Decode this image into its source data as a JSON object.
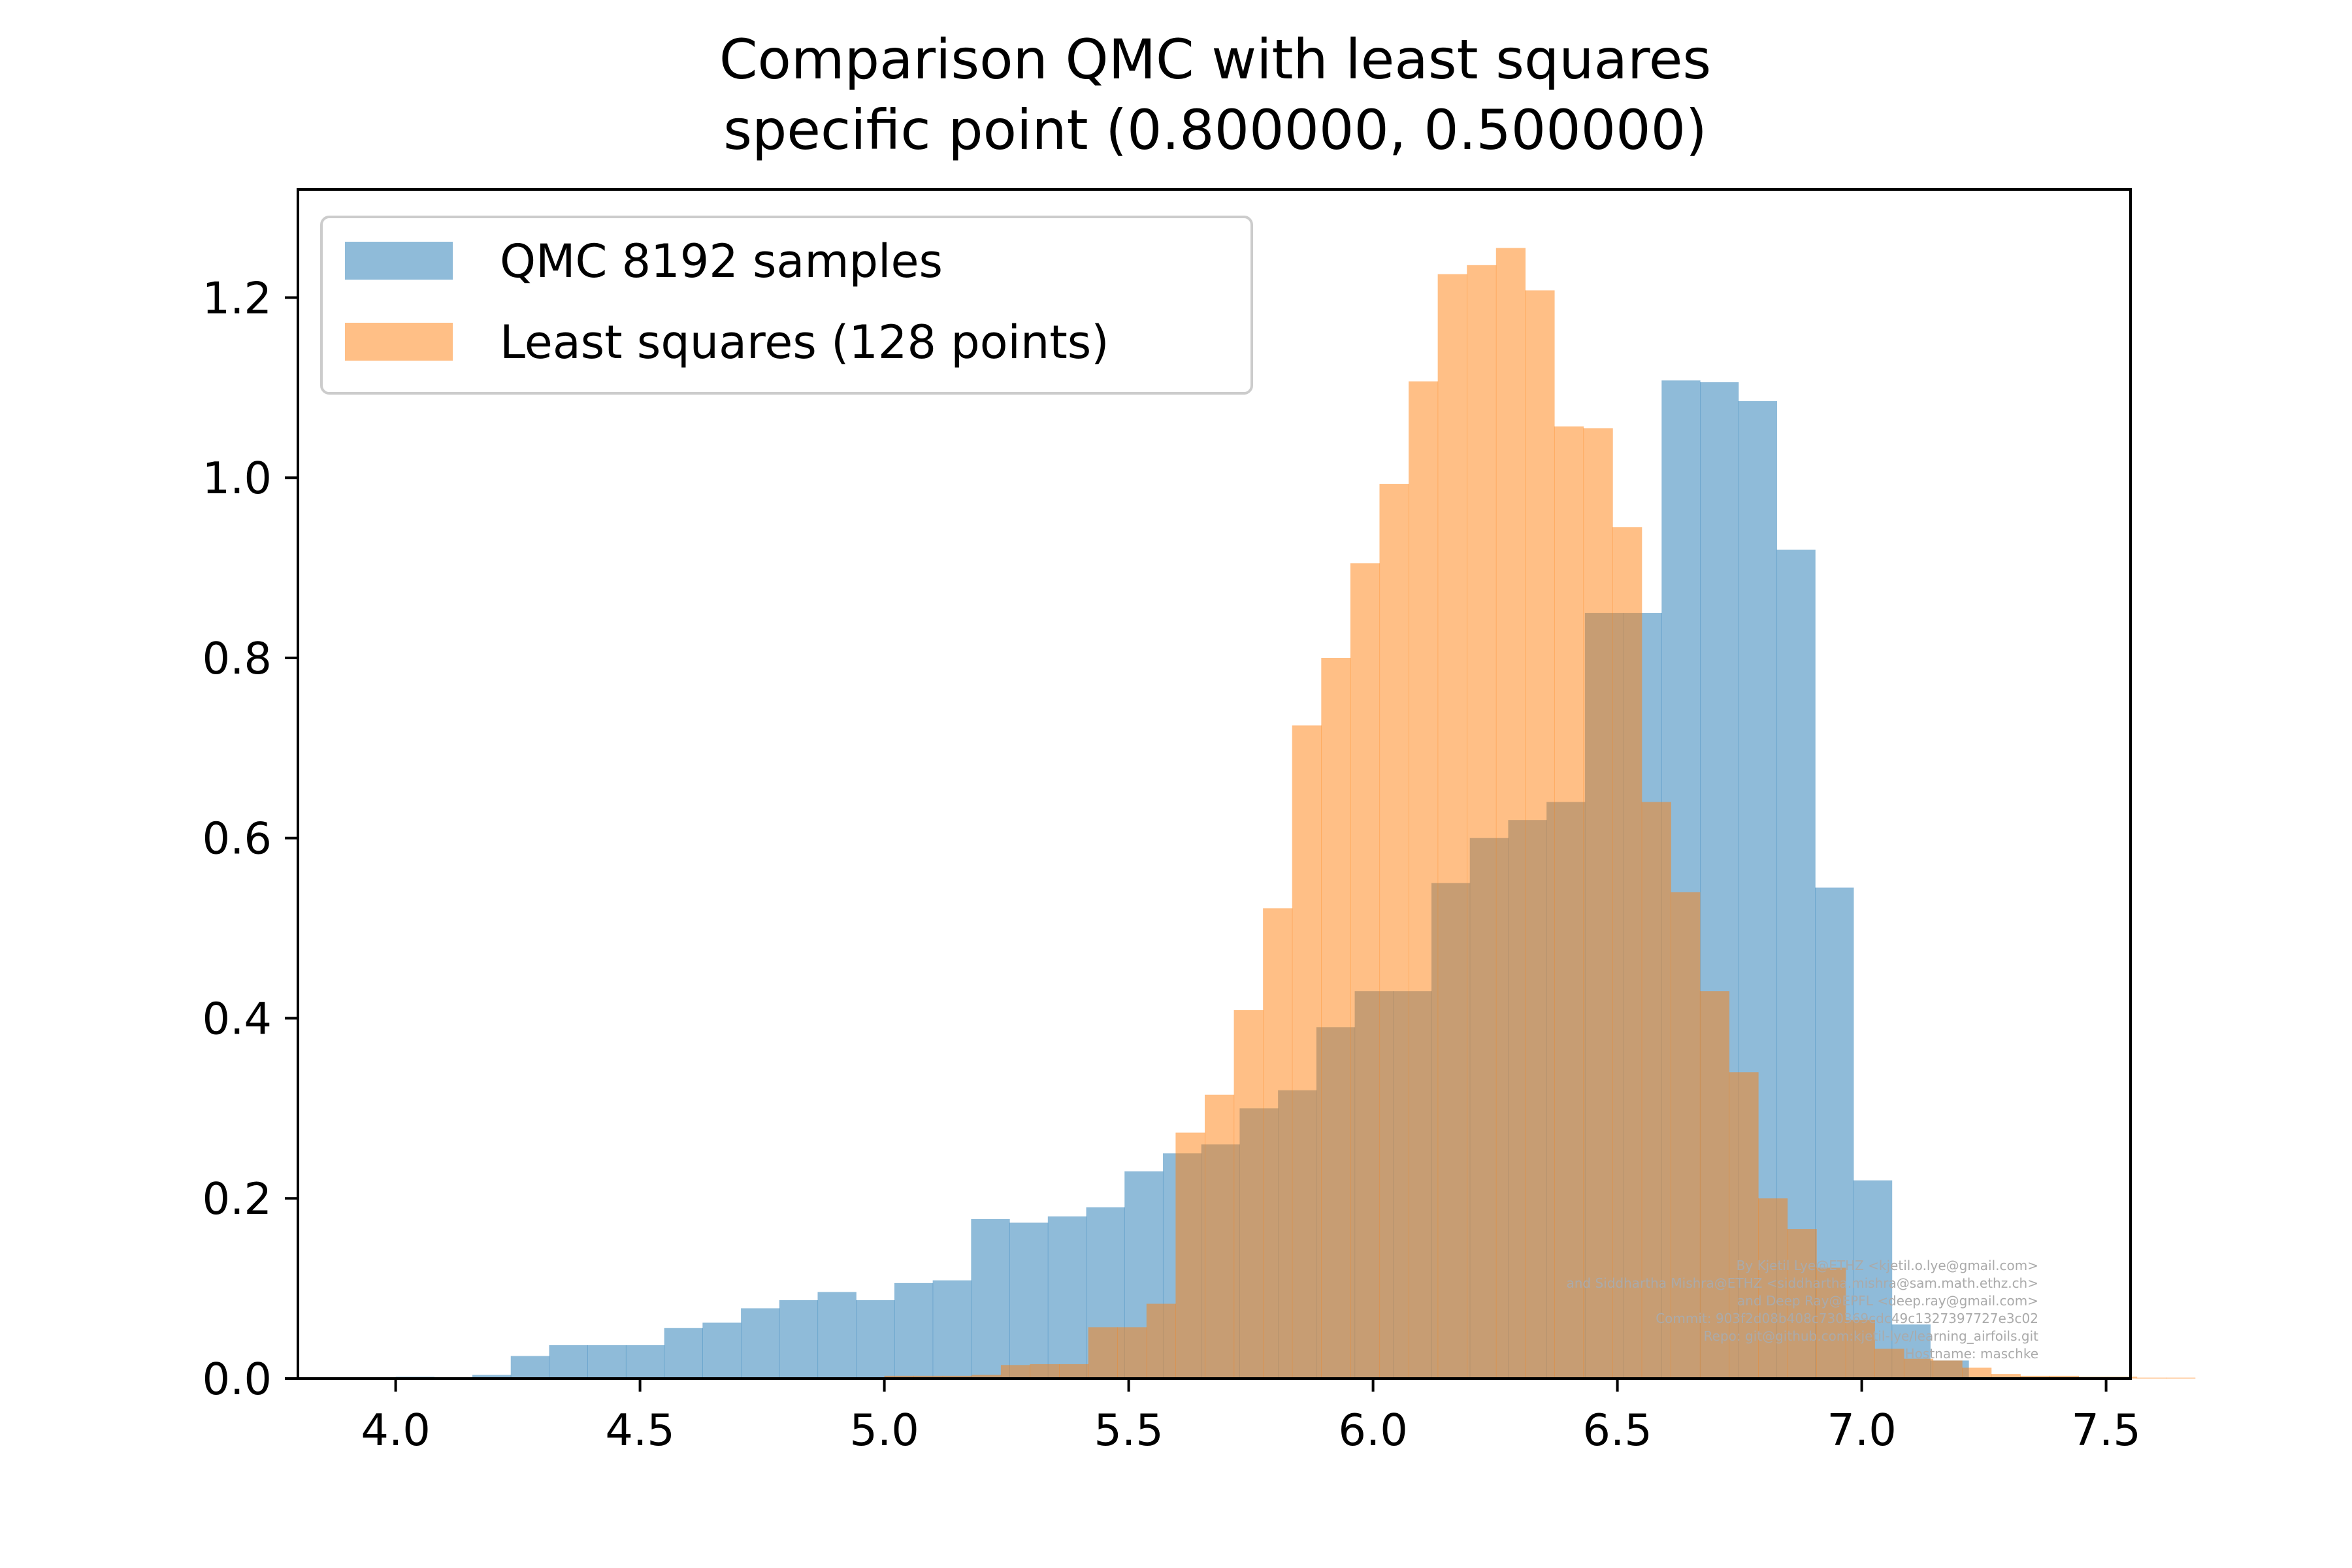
{
  "chart_data": {
    "type": "bar",
    "title_lines": [
      "Comparison QMC with least squares",
      "specific point  (0.800000, 0.500000)"
    ],
    "xlabel": "",
    "ylabel": "",
    "xlim": [
      3.8,
      7.55
    ],
    "ylim": [
      0.0,
      1.32
    ],
    "xticks": [
      "4.0",
      "4.5",
      "5.0",
      "5.5",
      "6.0",
      "6.5",
      "7.0",
      "7.5"
    ],
    "xtick_values": [
      4.0,
      4.5,
      5.0,
      5.5,
      6.0,
      6.5,
      7.0,
      7.5
    ],
    "yticks": [
      "0.0",
      "0.2",
      "0.4",
      "0.6",
      "0.8",
      "1.0",
      "1.2"
    ],
    "ytick_values": [
      0.0,
      0.2,
      0.4,
      0.6,
      0.8,
      1.0,
      1.2
    ],
    "grid": false,
    "legend_position": "top-left",
    "series": [
      {
        "name": "QMC 8192 samples",
        "color": "#1f77b4",
        "opacity": 0.5,
        "bin_start": 4.0,
        "bin_width": 0.0785,
        "values": [
          0.002,
          0.0,
          0.004,
          0.025,
          0.037,
          0.037,
          0.037,
          0.056,
          0.062,
          0.078,
          0.087,
          0.096,
          0.087,
          0.106,
          0.109,
          0.177,
          0.173,
          0.18,
          0.19,
          0.23,
          0.25,
          0.26,
          0.3,
          0.32,
          0.39,
          0.43,
          0.43,
          0.55,
          0.6,
          0.62,
          0.64,
          0.85,
          0.85,
          1.108,
          1.106,
          1.085,
          0.92,
          0.545,
          0.22,
          0.06,
          0.02
        ]
      },
      {
        "name": "Least squares (128 points)",
        "color": "#ff7f0e",
        "opacity": 0.5,
        "bin_start": 5.0,
        "bin_width": 0.0596,
        "values": [
          0.003,
          0.003,
          0.003,
          0.004,
          0.015,
          0.016,
          0.016,
          0.057,
          0.057,
          0.083,
          0.273,
          0.315,
          0.409,
          0.522,
          0.725,
          0.8,
          0.905,
          0.993,
          1.107,
          1.226,
          1.236,
          1.255,
          1.208,
          1.057,
          1.055,
          0.945,
          0.64,
          0.54,
          0.43,
          0.34,
          0.2,
          0.166,
          0.123,
          0.065,
          0.033,
          0.022,
          0.02,
          0.012,
          0.005,
          0.003,
          0.003,
          0.002,
          0.002,
          0.001,
          0.001
        ]
      }
    ],
    "credit_lines": [
      "By Kjetil Lye@ETHZ <kjetil.o.lye@gmail.com>",
      "and Siddhartha Mishra@ETHZ <siddhartha.mishra@sam.math.ethz.ch>",
      "and Deep Ray@EPFL <deep.ray@gmail.com>",
      "Commit: 903f2d08b408c730369cdc49c1327397727e3c02",
      "Repo: git@github.com:kjetil-lye/learning_airfoils.git",
      "Hostname: maschke"
    ]
  }
}
